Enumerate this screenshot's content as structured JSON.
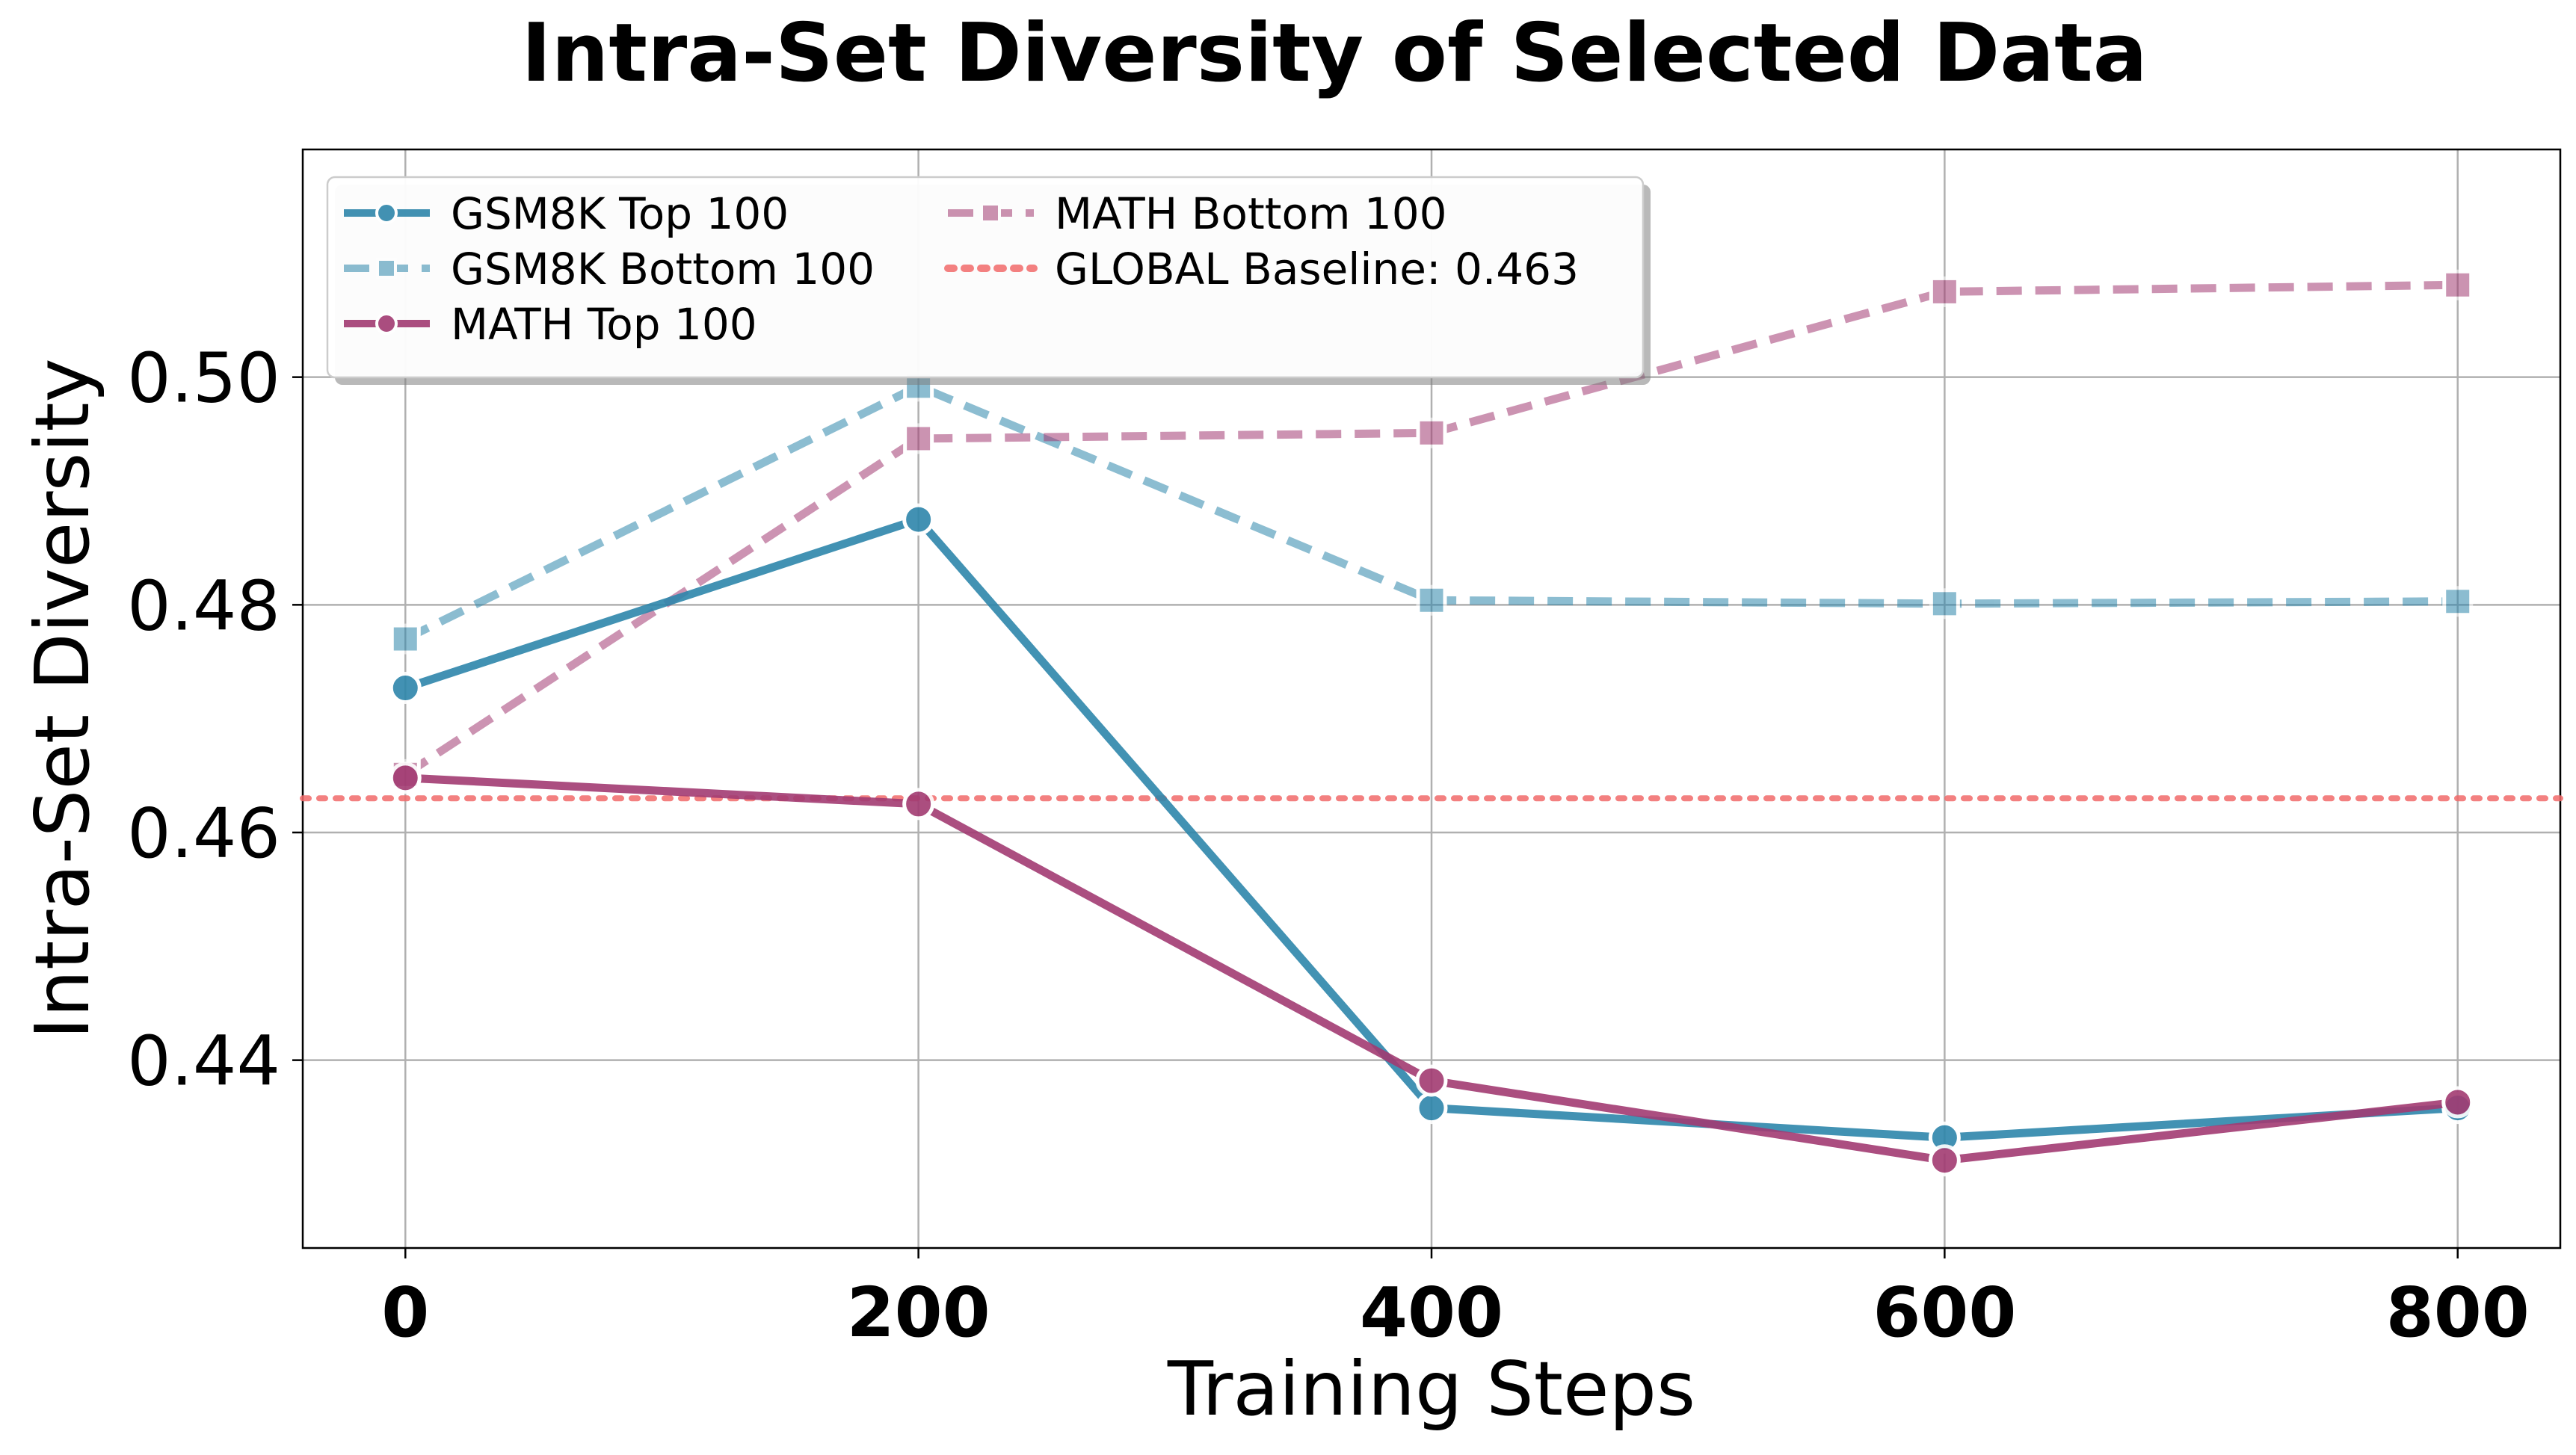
{
  "chart_data": {
    "type": "line",
    "title": "Intra-Set Diversity of Selected Data",
    "xlabel": "Training Steps",
    "ylabel": "Intra-Set Diversity",
    "x": [
      0,
      200,
      400,
      600,
      800
    ],
    "xticks": [
      0,
      200,
      400,
      600,
      800
    ],
    "yticks": [
      0.44,
      0.46,
      0.48,
      0.5
    ],
    "ytick_labels": [
      "0.44",
      "0.46",
      "0.48",
      "0.50"
    ],
    "xlim": [
      -40,
      840
    ],
    "ylim": [
      0.4235,
      0.52
    ],
    "grid": true,
    "legend_position": "upper-left",
    "series": [
      {
        "name": "GSM8K Top 100",
        "values": [
          0.4727,
          0.4875,
          0.4358,
          0.4332,
          0.4358
        ],
        "color": "#2E86AB",
        "style": "solid",
        "marker": "circle",
        "opacity": 0.9
      },
      {
        "name": "GSM8K Bottom 100",
        "values": [
          0.477,
          0.4992,
          0.4804,
          0.4801,
          0.4803
        ],
        "color": "#2E86AB",
        "style": "dashed",
        "marker": "square",
        "opacity": 0.55
      },
      {
        "name": "MATH Top 100",
        "values": [
          0.4648,
          0.4625,
          0.4382,
          0.4312,
          0.4363
        ],
        "color": "#A23B72",
        "style": "solid",
        "marker": "circle",
        "opacity": 0.9
      },
      {
        "name": "MATH Bottom 100",
        "values": [
          0.4651,
          0.4946,
          0.4951,
          0.5075,
          0.5081
        ],
        "color": "#A23B72",
        "style": "dashed",
        "marker": "square",
        "opacity": 0.55
      }
    ],
    "baseline": {
      "name": "GLOBAL Baseline: 0.463",
      "value": 0.463,
      "color": "#F26B6B",
      "style": "dotted"
    }
  }
}
